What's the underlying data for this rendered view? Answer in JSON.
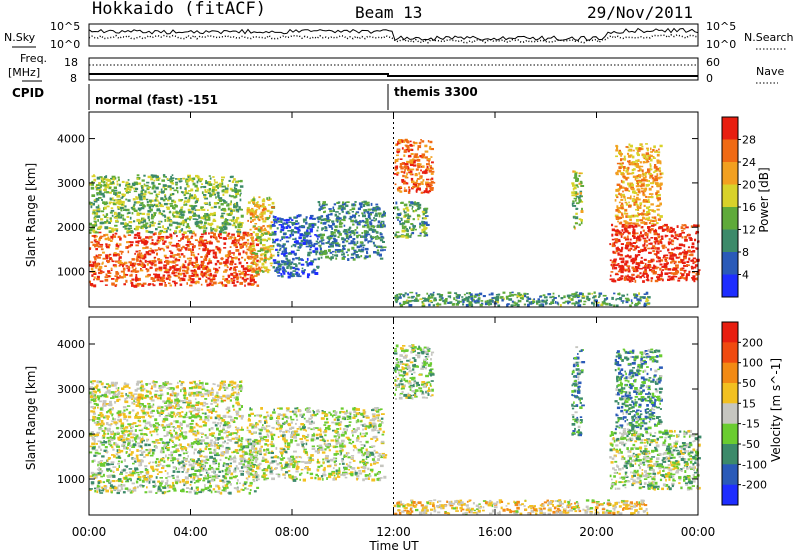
{
  "header": {
    "station": "Hokkaido (fitACF)",
    "beam": "Beam 13",
    "date": "29/Nov/2011"
  },
  "top_panels": {
    "nsky_label": "N.Sky",
    "nsearch_label": "N.Search",
    "nsky_ticks": [
      "10^5",
      "10^0"
    ],
    "nsearch_ticks": [
      "10^5",
      "10^0"
    ],
    "freq_label_1": "Freq.",
    "freq_label_2": "[MHz]",
    "freq_ticks": [
      "18",
      "8"
    ],
    "nave_label": "Nave",
    "nave_ticks": [
      "60",
      "0"
    ],
    "cpid_label": "CPID",
    "cpid_segments": [
      {
        "label": "normal (fast) -151",
        "start_hour": 0.0,
        "end_hour": 12.0
      },
      {
        "label": "themis 3300",
        "start_hour": 12.0,
        "end_hour": 24.0
      }
    ]
  },
  "chart_data": [
    {
      "type": "heatmap",
      "title": "",
      "xlabel": "",
      "ylabel": "Slant Range [km]",
      "xlim": [
        0,
        24
      ],
      "ylim": [
        200,
        4600
      ],
      "yticks": [
        "1000",
        "2000",
        "3000",
        "4000"
      ],
      "colorbar": {
        "label": "Power [dB]",
        "ticks": [
          "4",
          "8",
          "12",
          "16",
          "20",
          "24",
          "28"
        ],
        "colors": [
          "#1e2dff",
          "#2a5ab8",
          "#3c8a6a",
          "#5faa3a",
          "#d8d22a",
          "#f2a020",
          "#f06a14",
          "#e81e10"
        ]
      },
      "regions": [
        {
          "t0": 0.0,
          "t1": 6.6,
          "r0": 700,
          "r1": 1900,
          "level": 0.86
        },
        {
          "t0": 0.0,
          "t1": 6.0,
          "r0": 1900,
          "r1": 3200,
          "level": 0.45
        },
        {
          "t0": 6.2,
          "t1": 7.2,
          "r0": 1000,
          "r1": 2700,
          "level": 0.62
        },
        {
          "t0": 7.2,
          "t1": 9.0,
          "r0": 900,
          "r1": 2300,
          "level": 0.2
        },
        {
          "t0": 9.0,
          "t1": 11.6,
          "r0": 1300,
          "r1": 2600,
          "level": 0.3
        },
        {
          "t0": 12.0,
          "t1": 13.5,
          "r0": 2800,
          "r1": 4000,
          "level": 0.82
        },
        {
          "t0": 12.0,
          "t1": 13.3,
          "r0": 1800,
          "r1": 2600,
          "level": 0.4
        },
        {
          "t0": 12.0,
          "t1": 22.0,
          "r0": 250,
          "r1": 550,
          "level": 0.35
        },
        {
          "t0": 19.0,
          "t1": 19.4,
          "r0": 2000,
          "r1": 3300,
          "level": 0.5
        },
        {
          "t0": 20.5,
          "t1": 24.0,
          "r0": 800,
          "r1": 2100,
          "level": 0.95
        },
        {
          "t0": 20.7,
          "t1": 22.5,
          "r0": 2100,
          "r1": 3900,
          "level": 0.7
        }
      ]
    },
    {
      "type": "heatmap",
      "title": "",
      "xlabel": "Time UT",
      "ylabel": "Slant Range [km]",
      "xlim": [
        0,
        24
      ],
      "ylim": [
        200,
        4600
      ],
      "yticks": [
        "1000",
        "2000",
        "3000",
        "4000"
      ],
      "xticks": [
        "00:00",
        "04:00",
        "08:00",
        "12:00",
        "16:00",
        "20:00",
        "00:00"
      ],
      "colorbar": {
        "label": "Velocity [m s^-1]",
        "ticks": [
          "200",
          "100",
          "50",
          "15",
          "-15",
          "-50",
          "-100",
          "-200"
        ],
        "colors": [
          "#1e2dff",
          "#2a5ab8",
          "#3c8a6a",
          "#6acc30",
          "#c6c6c0",
          "#f2c020",
          "#f28a14",
          "#f04a10",
          "#e81e10"
        ]
      },
      "regions": [
        {
          "t0": 0.0,
          "t1": 6.6,
          "r0": 700,
          "r1": 1900,
          "level": 0.45
        },
        {
          "t0": 0.0,
          "t1": 6.0,
          "r0": 1900,
          "r1": 3200,
          "level": 0.5
        },
        {
          "t0": 6.2,
          "t1": 11.6,
          "r0": 1000,
          "r1": 2600,
          "level": 0.48
        },
        {
          "t0": 12.0,
          "t1": 13.5,
          "r0": 2800,
          "r1": 4000,
          "level": 0.42
        },
        {
          "t0": 12.0,
          "t1": 22.0,
          "r0": 250,
          "r1": 550,
          "level": 0.58
        },
        {
          "t0": 19.0,
          "t1": 19.4,
          "r0": 2000,
          "r1": 4000,
          "level": 0.3
        },
        {
          "t0": 20.5,
          "t1": 24.0,
          "r0": 800,
          "r1": 2100,
          "level": 0.44
        },
        {
          "t0": 20.7,
          "t1": 22.5,
          "r0": 2100,
          "r1": 3900,
          "level": 0.3
        }
      ]
    }
  ]
}
